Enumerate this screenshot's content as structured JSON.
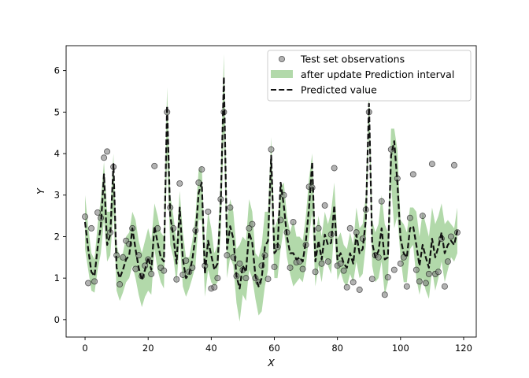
{
  "chart_data": {
    "type": "line",
    "xlabel": "X",
    "ylabel": "Y",
    "xlim": [
      -6,
      124
    ],
    "ylim": [
      -0.42,
      6.6
    ],
    "xticks": [
      0,
      20,
      40,
      60,
      80,
      100,
      120
    ],
    "yticks": [
      0,
      1,
      2,
      3,
      4,
      5,
      6
    ],
    "legend_position": "top-right",
    "colors": {
      "observations": "#808080",
      "interval": "#b2d9aa",
      "predicted": "#111111"
    },
    "series": [
      {
        "name": "Test set observations",
        "kind": "scatter",
        "x": [
          0,
          1,
          2,
          3,
          4,
          5,
          6,
          7,
          8,
          9,
          10,
          11,
          12,
          13,
          14,
          15,
          16,
          17,
          18,
          19,
          20,
          21,
          22,
          23,
          24,
          25,
          26,
          27,
          28,
          29,
          30,
          31,
          32,
          33,
          34,
          35,
          36,
          37,
          38,
          39,
          40,
          41,
          42,
          43,
          44,
          45,
          46,
          47,
          48,
          49,
          50,
          51,
          52,
          53,
          54,
          55,
          56,
          57,
          58,
          59,
          60,
          61,
          62,
          63,
          64,
          65,
          66,
          67,
          68,
          69,
          70,
          71,
          72,
          73,
          74,
          75,
          76,
          77,
          78,
          79,
          80,
          81,
          82,
          83,
          84,
          85,
          86,
          87,
          88,
          89,
          90,
          91,
          92,
          93,
          94,
          95,
          96,
          97,
          98,
          99,
          100,
          101,
          102,
          103,
          104,
          105,
          106,
          107,
          108,
          109,
          110,
          111,
          112,
          113,
          114,
          115,
          116,
          117,
          118
        ],
        "y": [
          2.48,
          0.88,
          2.2,
          0.92,
          2.58,
          2.45,
          3.9,
          4.05,
          2.1,
          3.68,
          1.55,
          0.85,
          1.5,
          1.9,
          1.82,
          2.2,
          1.22,
          1.55,
          1.05,
          1.3,
          1.45,
          1.1,
          3.7,
          2.2,
          1.25,
          1.18,
          5.0,
          2.7,
          2.2,
          0.97,
          3.28,
          1.08,
          1.42,
          1.15,
          1.25,
          2.15,
          3.3,
          3.62,
          1.3,
          2.6,
          0.75,
          0.78,
          1.0,
          2.9,
          5.0,
          1.55,
          2.7,
          1.5,
          1.05,
          1.35,
          1.2,
          1.0,
          2.2,
          2.3,
          1.0,
          0.9,
          1.3,
          1.55,
          0.98,
          4.1,
          1.27,
          1.75,
          2.4,
          3.0,
          2.1,
          1.25,
          2.35,
          1.38,
          1.4,
          1.22,
          1.8,
          3.2,
          3.18,
          1.15,
          2.2,
          1.35,
          2.75,
          1.4,
          2.05,
          3.65,
          1.3,
          1.35,
          1.18,
          0.78,
          2.2,
          0.9,
          2.1,
          0.72,
          1.95,
          2.65,
          5.0,
          0.98,
          1.55,
          1.5,
          2.85,
          0.6,
          1.02,
          4.1,
          1.2,
          3.4,
          1.35,
          1.5,
          0.8,
          2.45,
          3.5,
          1.2,
          0.92,
          2.5,
          0.88,
          1.1,
          3.75,
          1.1,
          1.15,
          1.95,
          0.8,
          1.4,
          2.0,
          3.72,
          2.1
        ]
      },
      {
        "name": "after update Prediction interval",
        "kind": "band",
        "x": [
          0,
          1,
          2,
          3,
          4,
          5,
          6,
          7,
          8,
          9,
          10,
          11,
          12,
          13,
          14,
          15,
          16,
          17,
          18,
          19,
          20,
          21,
          22,
          23,
          24,
          25,
          26,
          27,
          28,
          29,
          30,
          31,
          32,
          33,
          34,
          35,
          36,
          37,
          38,
          39,
          40,
          41,
          42,
          43,
          44,
          45,
          46,
          47,
          48,
          49,
          50,
          51,
          52,
          53,
          54,
          55,
          56,
          57,
          58,
          59,
          60,
          61,
          62,
          63,
          64,
          65,
          66,
          67,
          68,
          69,
          70,
          71,
          72,
          73,
          74,
          75,
          76,
          77,
          78,
          79,
          80,
          81,
          82,
          83,
          84,
          85,
          86,
          87,
          88,
          89,
          90,
          91,
          92,
          93,
          94,
          95,
          96,
          97,
          98,
          99,
          100,
          101,
          102,
          103,
          104,
          105,
          106,
          107,
          108,
          109,
          110,
          111,
          112,
          113,
          114,
          115,
          116,
          117,
          118
        ],
        "lower": [
          1.7,
          1.2,
          0.7,
          0.65,
          1.2,
          1.6,
          2.4,
          1.4,
          1.55,
          2.6,
          0.7,
          0.45,
          0.65,
          0.9,
          1.0,
          1.3,
          1.0,
          0.6,
          0.3,
          0.55,
          0.7,
          0.6,
          1.7,
          1.2,
          0.9,
          0.75,
          3.9,
          1.8,
          1.5,
          0.85,
          1.9,
          0.8,
          0.55,
          0.75,
          1.0,
          1.3,
          2.4,
          2.4,
          0.55,
          1.2,
          0.9,
          0.8,
          0.9,
          2.1,
          4.6,
          1.0,
          1.5,
          1.3,
          0.4,
          -0.05,
          0.6,
          0.45,
          1.2,
          1.0,
          0.5,
          0.1,
          0.2,
          0.8,
          1.2,
          3.2,
          1.0,
          1.0,
          1.7,
          2.2,
          1.5,
          1.1,
          0.8,
          0.9,
          1.0,
          0.9,
          1.3,
          2.0,
          2.6,
          0.8,
          1.3,
          0.9,
          1.5,
          1.3,
          1.1,
          2.2,
          0.95,
          1.15,
          0.9,
          0.8,
          1.1,
          0.9,
          1.4,
          1.0,
          1.1,
          1.8,
          4.7,
          1.3,
          0.9,
          1.0,
          1.4,
          0.6,
          0.9,
          3.3,
          2.2,
          2.5,
          1.5,
          0.9,
          0.9,
          1.7,
          1.8,
          1.0,
          0.6,
          1.0,
          0.7,
          0.5,
          1.2,
          0.7,
          1.0,
          1.4,
          0.9,
          1.2,
          1.5,
          1.4,
          1.6
        ],
        "upper": [
          3.0,
          2.25,
          1.6,
          1.45,
          2.3,
          2.9,
          3.8,
          2.6,
          2.6,
          4.0,
          1.8,
          1.5,
          1.6,
          2.0,
          2.1,
          2.6,
          2.4,
          1.9,
          1.6,
          1.9,
          2.2,
          1.9,
          2.8,
          2.5,
          2.1,
          2.0,
          5.6,
          3.0,
          2.5,
          1.9,
          3.1,
          2.1,
          1.5,
          1.5,
          1.9,
          2.5,
          3.6,
          3.7,
          1.6,
          2.6,
          2.2,
          1.6,
          1.8,
          3.4,
          6.4,
          2.4,
          2.9,
          2.6,
          1.7,
          1.8,
          2.0,
          1.9,
          2.9,
          2.6,
          1.6,
          1.5,
          1.8,
          2.6,
          2.6,
          4.4,
          2.2,
          2.4,
          3.2,
          3.3,
          2.5,
          2.1,
          2.4,
          2.0,
          2.0,
          1.9,
          2.5,
          3.4,
          4.0,
          2.0,
          2.5,
          2.0,
          2.6,
          2.3,
          2.6,
          3.3,
          1.95,
          2.1,
          1.8,
          1.7,
          2.1,
          1.8,
          2.7,
          2.2,
          2.3,
          3.0,
          5.5,
          2.4,
          2.1,
          2.3,
          3.0,
          2.3,
          2.1,
          4.6,
          4.6,
          4.1,
          2.4,
          2.3,
          2.1,
          2.7,
          2.7,
          2.6,
          2.0,
          2.6,
          2.3,
          2.0,
          2.7,
          2.3,
          2.5,
          2.8,
          2.3,
          2.4,
          2.3,
          2.2,
          2.7
        ]
      },
      {
        "name": "Predicted value",
        "kind": "line",
        "x": [
          0,
          1,
          2,
          3,
          4,
          5,
          6,
          7,
          8,
          9,
          10,
          11,
          12,
          13,
          14,
          15,
          16,
          17,
          18,
          19,
          20,
          21,
          22,
          23,
          24,
          25,
          26,
          27,
          28,
          29,
          30,
          31,
          32,
          33,
          34,
          35,
          36,
          37,
          38,
          39,
          40,
          41,
          42,
          43,
          44,
          45,
          46,
          47,
          48,
          49,
          50,
          51,
          52,
          53,
          54,
          55,
          56,
          57,
          58,
          59,
          60,
          61,
          62,
          63,
          64,
          65,
          66,
          67,
          68,
          69,
          70,
          71,
          72,
          73,
          74,
          75,
          76,
          77,
          78,
          79,
          80,
          81,
          82,
          83,
          84,
          85,
          86,
          87,
          88,
          89,
          90,
          91,
          92,
          93,
          94,
          95,
          96,
          97,
          98,
          99,
          100,
          101,
          102,
          103,
          104,
          105,
          106,
          107,
          108,
          109,
          110,
          111,
          112,
          113,
          114,
          115,
          116,
          117,
          118
        ],
        "y": [
          2.35,
          1.7,
          1.15,
          1.05,
          1.75,
          2.25,
          3.5,
          1.8,
          2.05,
          3.75,
          1.25,
          1.0,
          1.2,
          1.45,
          1.55,
          2.2,
          1.7,
          1.25,
          0.95,
          1.2,
          1.5,
          1.2,
          2.25,
          1.85,
          1.5,
          1.4,
          5.15,
          2.5,
          2.0,
          1.35,
          2.7,
          1.45,
          1.0,
          1.1,
          1.45,
          2.0,
          3.05,
          3.3,
          1.1,
          1.9,
          1.55,
          1.2,
          1.35,
          2.75,
          5.85,
          1.7,
          2.25,
          1.95,
          1.05,
          0.75,
          1.3,
          1.15,
          2.1,
          1.85,
          1.05,
          0.8,
          1.0,
          1.75,
          1.9,
          3.95,
          1.6,
          1.7,
          3.3,
          2.75,
          2.0,
          1.6,
          1.6,
          1.45,
          1.5,
          1.4,
          1.9,
          2.7,
          3.8,
          1.4,
          1.9,
          1.45,
          2.05,
          1.8,
          1.85,
          2.75,
          1.45,
          1.6,
          1.35,
          1.25,
          1.6,
          1.35,
          2.05,
          1.6,
          1.7,
          2.4,
          5.2,
          1.85,
          1.5,
          1.65,
          2.2,
          1.45,
          1.5,
          3.95,
          4.3,
          3.3,
          1.95,
          1.6,
          1.5,
          2.2,
          2.25,
          1.8,
          1.3,
          1.8,
          1.5,
          1.25,
          1.95,
          1.5,
          1.75,
          2.1,
          1.6,
          1.8,
          1.9,
          1.8,
          2.15
        ]
      }
    ]
  }
}
